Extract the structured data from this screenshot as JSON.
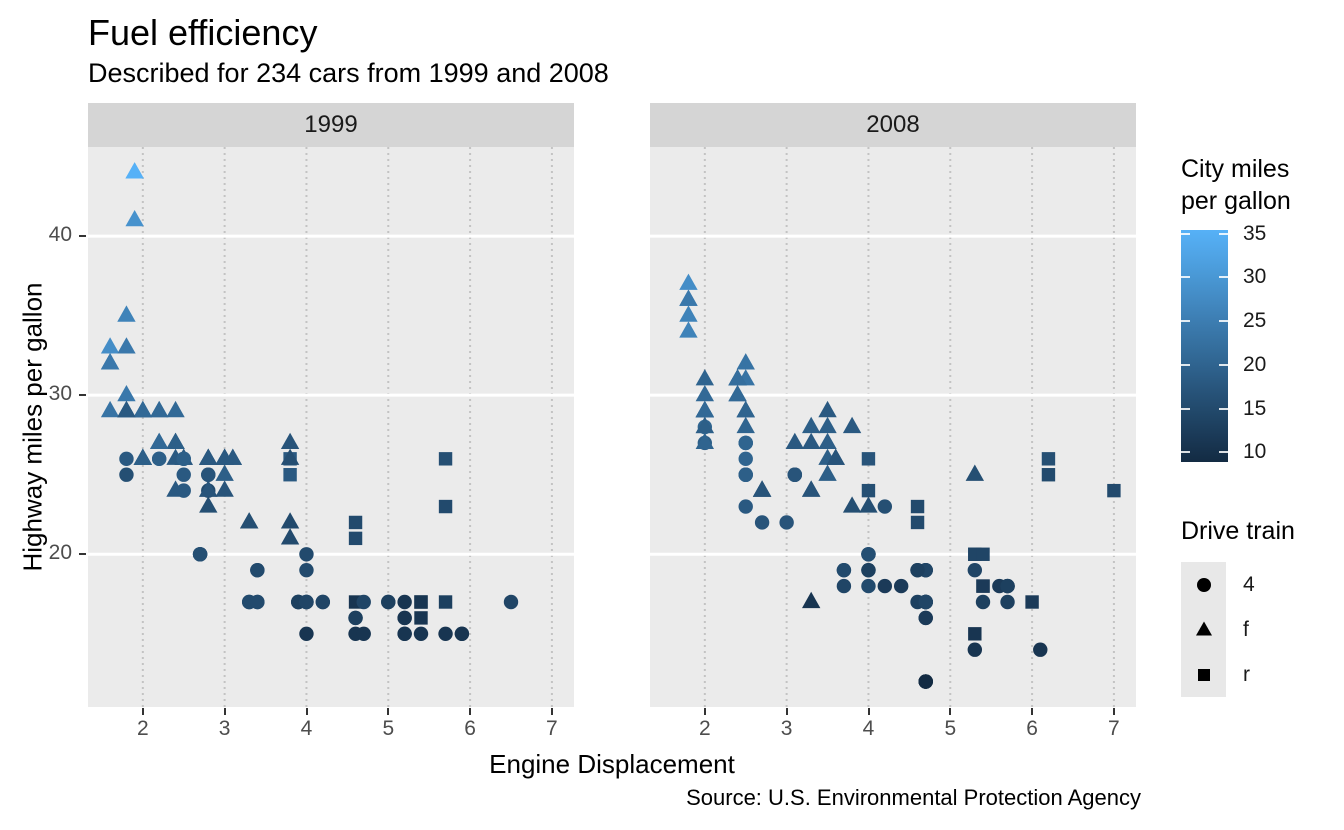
{
  "header": {
    "title": "Fuel efficiency",
    "subtitle": "Described for 234 cars from 1999 and 2008"
  },
  "caption": "Source: U.S. Environmental Protection Agency",
  "chart_data": {
    "type": "scatter",
    "title": "Fuel efficiency",
    "subtitle": "Described for 234 cars from 1999 and 2008",
    "caption": "Source: U.S. Environmental Protection Agency",
    "facets": [
      "1999",
      "2008"
    ],
    "xlabel": "Engine Displacement",
    "ylabel": "Highway miles per gallon",
    "x_ticks": [
      2,
      3,
      4,
      5,
      6,
      7
    ],
    "y_ticks": [
      20,
      30,
      40
    ],
    "x_domain": [
      1.33,
      7.27
    ],
    "y_domain": [
      10.4,
      45.6
    ],
    "grid": {
      "major_y": "solid white",
      "major_x": "dotted grey",
      "panel_bg": "#ebebeb"
    },
    "color_legend": {
      "title": "City miles\nper gallon",
      "low_hex": "#132B43",
      "high_hex": "#56B1F7",
      "domain": [
        9,
        35
      ],
      "bar_range": [
        8.9,
        35.4
      ],
      "ticks": [
        10,
        15,
        20,
        25,
        30,
        35
      ]
    },
    "shape_legend": {
      "title": "Drive train",
      "items": [
        {
          "label": "4",
          "shape": "circle"
        },
        {
          "label": "f",
          "shape": "triangle"
        },
        {
          "label": "r",
          "shape": "square"
        }
      ]
    },
    "point_format": [
      "displ",
      "hwy",
      "cty",
      "drv"
    ],
    "points": {
      "1999": [
        [
          1.8,
          29,
          18,
          "f"
        ],
        [
          1.8,
          29,
          21,
          "f"
        ],
        [
          2.8,
          26,
          16,
          "f"
        ],
        [
          2.8,
          26,
          18,
          "f"
        ],
        [
          1.8,
          26,
          18,
          "4"
        ],
        [
          1.8,
          25,
          16,
          "4"
        ],
        [
          2.8,
          25,
          15,
          "4"
        ],
        [
          2.8,
          25,
          17,
          "4"
        ],
        [
          2.8,
          24,
          15,
          "4"
        ],
        [
          5.7,
          17,
          13,
          "r"
        ],
        [
          5.7,
          26,
          16,
          "r"
        ],
        [
          5.7,
          23,
          15,
          "r"
        ],
        [
          5.7,
          15,
          11,
          "4"
        ],
        [
          6.5,
          17,
          14,
          "4"
        ],
        [
          2.4,
          27,
          19,
          "f"
        ],
        [
          3.1,
          26,
          18,
          "f"
        ],
        [
          2.4,
          24,
          18,
          "f"
        ],
        [
          3.0,
          24,
          17,
          "f"
        ],
        [
          3.3,
          22,
          16,
          "f"
        ],
        [
          3.3,
          22,
          16,
          "f"
        ],
        [
          3.8,
          22,
          15,
          "f"
        ],
        [
          3.8,
          21,
          15,
          "f"
        ],
        [
          3.9,
          17,
          13,
          "4"
        ],
        [
          3.9,
          17,
          14,
          "4"
        ],
        [
          5.2,
          17,
          11,
          "4"
        ],
        [
          5.2,
          15,
          11,
          "4"
        ],
        [
          3.9,
          17,
          13,
          "4"
        ],
        [
          5.2,
          16,
          11,
          "4"
        ],
        [
          5.9,
          15,
          11,
          "4"
        ],
        [
          5.2,
          15,
          11,
          "4"
        ],
        [
          5.2,
          16,
          11,
          "4"
        ],
        [
          5.9,
          15,
          11,
          "4"
        ],
        [
          4.6,
          17,
          11,
          "r"
        ],
        [
          5.4,
          17,
          11,
          "r"
        ],
        [
          4.0,
          17,
          14,
          "4"
        ],
        [
          4.0,
          19,
          15,
          "4"
        ],
        [
          4.0,
          17,
          14,
          "4"
        ],
        [
          5.0,
          17,
          13,
          "4"
        ],
        [
          4.2,
          17,
          14,
          "4"
        ],
        [
          4.2,
          17,
          14,
          "4"
        ],
        [
          4.6,
          16,
          13,
          "4"
        ],
        [
          4.6,
          16,
          13,
          "4"
        ],
        [
          5.4,
          15,
          11,
          "4"
        ],
        [
          3.8,
          26,
          18,
          "r"
        ],
        [
          3.8,
          25,
          18,
          "r"
        ],
        [
          4.6,
          21,
          15,
          "r"
        ],
        [
          4.6,
          22,
          15,
          "r"
        ],
        [
          1.6,
          33,
          28,
          "f"
        ],
        [
          1.6,
          32,
          24,
          "f"
        ],
        [
          1.6,
          32,
          25,
          "f"
        ],
        [
          1.6,
          29,
          23,
          "f"
        ],
        [
          1.6,
          32,
          24,
          "f"
        ],
        [
          2.4,
          26,
          18,
          "f"
        ],
        [
          2.4,
          27,
          18,
          "f"
        ],
        [
          2.5,
          26,
          18,
          "f"
        ],
        [
          2.5,
          26,
          18,
          "f"
        ],
        [
          2.0,
          26,
          19,
          "f"
        ],
        [
          2.0,
          29,
          19,
          "f"
        ],
        [
          4.0,
          20,
          15,
          "4"
        ],
        [
          4.7,
          17,
          14,
          "4"
        ],
        [
          4.0,
          15,
          11,
          "4"
        ],
        [
          4.6,
          15,
          11,
          "4"
        ],
        [
          5.4,
          17,
          11,
          "r"
        ],
        [
          5.4,
          16,
          11,
          "r"
        ],
        [
          4.0,
          17,
          14,
          "4"
        ],
        [
          5.0,
          17,
          13,
          "4"
        ],
        [
          2.4,
          29,
          21,
          "f"
        ],
        [
          2.4,
          27,
          19,
          "f"
        ],
        [
          3.0,
          26,
          18,
          "f"
        ],
        [
          3.0,
          25,
          19,
          "f"
        ],
        [
          3.3,
          17,
          14,
          "4"
        ],
        [
          3.3,
          17,
          15,
          "4"
        ],
        [
          3.1,
          26,
          18,
          "f"
        ],
        [
          3.8,
          26,
          16,
          "f"
        ],
        [
          3.8,
          27,
          17,
          "f"
        ],
        [
          2.5,
          25,
          18,
          "4"
        ],
        [
          2.5,
          24,
          18,
          "4"
        ],
        [
          2.2,
          26,
          21,
          "4"
        ],
        [
          2.2,
          26,
          19,
          "4"
        ],
        [
          2.5,
          26,
          19,
          "4"
        ],
        [
          2.5,
          26,
          19,
          "4"
        ],
        [
          2.7,
          20,
          15,
          "4"
        ],
        [
          2.7,
          20,
          16,
          "4"
        ],
        [
          3.4,
          19,
          15,
          "4"
        ],
        [
          3.4,
          17,
          15,
          "4"
        ],
        [
          2.2,
          29,
          21,
          "f"
        ],
        [
          2.2,
          27,
          21,
          "f"
        ],
        [
          3.0,
          26,
          18,
          "f"
        ],
        [
          3.0,
          26,
          18,
          "f"
        ],
        [
          2.2,
          27,
          21,
          "f"
        ],
        [
          2.2,
          29,
          21,
          "f"
        ],
        [
          3.0,
          26,
          18,
          "f"
        ],
        [
          3.0,
          26,
          18,
          "f"
        ],
        [
          1.8,
          30,
          24,
          "f"
        ],
        [
          1.8,
          33,
          24,
          "f"
        ],
        [
          1.8,
          35,
          26,
          "f"
        ],
        [
          4.7,
          15,
          11,
          "4"
        ],
        [
          2.7,
          20,
          15,
          "4"
        ],
        [
          2.7,
          20,
          16,
          "4"
        ],
        [
          3.4,
          17,
          15,
          "4"
        ],
        [
          3.4,
          19,
          15,
          "4"
        ],
        [
          2.0,
          29,
          21,
          "f"
        ],
        [
          2.0,
          26,
          19,
          "f"
        ],
        [
          2.8,
          24,
          17,
          "f"
        ],
        [
          1.9,
          44,
          33,
          "f"
        ],
        [
          2.0,
          29,
          21,
          "f"
        ],
        [
          2.0,
          26,
          19,
          "f"
        ],
        [
          2.8,
          23,
          16,
          "f"
        ],
        [
          2.8,
          24,
          17,
          "f"
        ],
        [
          1.9,
          44,
          35,
          "f"
        ],
        [
          1.9,
          41,
          29,
          "f"
        ],
        [
          2.0,
          29,
          21,
          "f"
        ],
        [
          2.0,
          26,
          19,
          "f"
        ],
        [
          1.8,
          29,
          21,
          "f"
        ],
        [
          1.8,
          29,
          18,
          "f"
        ],
        [
          2.8,
          26,
          16,
          "f"
        ],
        [
          2.8,
          26,
          18,
          "f"
        ]
      ],
      "2008": [
        [
          2.0,
          31,
          20,
          "f"
        ],
        [
          2.0,
          30,
          21,
          "f"
        ],
        [
          3.1,
          27,
          18,
          "f"
        ],
        [
          2.0,
          28,
          20,
          "4"
        ],
        [
          2.0,
          27,
          19,
          "4"
        ],
        [
          3.1,
          25,
          17,
          "4"
        ],
        [
          3.1,
          25,
          15,
          "4"
        ],
        [
          3.1,
          25,
          17,
          "4"
        ],
        [
          4.2,
          23,
          16,
          "4"
        ],
        [
          5.3,
          20,
          14,
          "r"
        ],
        [
          5.3,
          15,
          11,
          "r"
        ],
        [
          5.3,
          20,
          14,
          "r"
        ],
        [
          6.0,
          17,
          12,
          "r"
        ],
        [
          6.2,
          26,
          16,
          "r"
        ],
        [
          6.2,
          25,
          15,
          "r"
        ],
        [
          7.0,
          24,
          15,
          "r"
        ],
        [
          5.3,
          19,
          14,
          "4"
        ],
        [
          5.3,
          14,
          11,
          "4"
        ],
        [
          2.4,
          30,
          22,
          "f"
        ],
        [
          3.5,
          29,
          18,
          "f"
        ],
        [
          3.6,
          26,
          17,
          "f"
        ],
        [
          3.3,
          24,
          17,
          "f"
        ],
        [
          3.3,
          24,
          17,
          "f"
        ],
        [
          3.3,
          17,
          11,
          "f"
        ],
        [
          3.8,
          23,
          16,
          "f"
        ],
        [
          4.0,
          23,
          16,
          "f"
        ],
        [
          3.7,
          19,
          15,
          "4"
        ],
        [
          3.7,
          18,
          14,
          "4"
        ],
        [
          4.7,
          19,
          14,
          "4"
        ],
        [
          4.7,
          19,
          14,
          "4"
        ],
        [
          4.7,
          12,
          9,
          "4"
        ],
        [
          4.7,
          17,
          13,
          "4"
        ],
        [
          4.7,
          12,
          9,
          "4"
        ],
        [
          4.7,
          17,
          13,
          "4"
        ],
        [
          5.7,
          18,
          13,
          "4"
        ],
        [
          4.7,
          16,
          12,
          "4"
        ],
        [
          4.7,
          12,
          9,
          "4"
        ],
        [
          4.7,
          17,
          13,
          "4"
        ],
        [
          4.7,
          17,
          13,
          "4"
        ],
        [
          4.7,
          16,
          12,
          "4"
        ],
        [
          4.7,
          12,
          9,
          "4"
        ],
        [
          5.7,
          17,
          13,
          "4"
        ],
        [
          5.4,
          18,
          12,
          "r"
        ],
        [
          4.0,
          19,
          13,
          "4"
        ],
        [
          4.6,
          19,
          13,
          "4"
        ],
        [
          4.6,
          17,
          13,
          "4"
        ],
        [
          5.4,
          17,
          13,
          "4"
        ],
        [
          4.0,
          26,
          17,
          "r"
        ],
        [
          4.0,
          24,
          16,
          "r"
        ],
        [
          4.6,
          23,
          15,
          "r"
        ],
        [
          4.6,
          22,
          15,
          "r"
        ],
        [
          5.4,
          20,
          14,
          "r"
        ],
        [
          1.8,
          34,
          26,
          "f"
        ],
        [
          1.8,
          36,
          25,
          "f"
        ],
        [
          1.8,
          36,
          24,
          "f"
        ],
        [
          2.0,
          29,
          21,
          "f"
        ],
        [
          2.4,
          30,
          21,
          "f"
        ],
        [
          2.4,
          31,
          21,
          "f"
        ],
        [
          3.3,
          28,
          19,
          "f"
        ],
        [
          2.0,
          28,
          20,
          "f"
        ],
        [
          2.0,
          27,
          20,
          "f"
        ],
        [
          2.7,
          24,
          17,
          "f"
        ],
        [
          2.7,
          24,
          16,
          "f"
        ],
        [
          2.7,
          24,
          17,
          "f"
        ],
        [
          3.0,
          22,
          17,
          "4"
        ],
        [
          3.7,
          19,
          15,
          "4"
        ],
        [
          4.7,
          12,
          9,
          "4"
        ],
        [
          4.7,
          19,
          14,
          "4"
        ],
        [
          5.7,
          18,
          13,
          "4"
        ],
        [
          6.1,
          14,
          11,
          "4"
        ],
        [
          4.2,
          18,
          12,
          "4"
        ],
        [
          4.4,
          18,
          12,
          "4"
        ],
        [
          5.4,
          18,
          12,
          "r"
        ],
        [
          4.0,
          19,
          13,
          "4"
        ],
        [
          4.6,
          19,
          13,
          "4"
        ],
        [
          2.5,
          31,
          23,
          "f"
        ],
        [
          2.5,
          32,
          23,
          "f"
        ],
        [
          3.5,
          27,
          19,
          "f"
        ],
        [
          3.5,
          26,
          19,
          "f"
        ],
        [
          3.5,
          25,
          19,
          "f"
        ],
        [
          4.0,
          20,
          14,
          "4"
        ],
        [
          5.6,
          18,
          12,
          "4"
        ],
        [
          3.8,
          28,
          18,
          "f"
        ],
        [
          5.3,
          25,
          16,
          "f"
        ],
        [
          2.5,
          27,
          20,
          "4"
        ],
        [
          2.5,
          25,
          19,
          "4"
        ],
        [
          2.5,
          26,
          20,
          "4"
        ],
        [
          2.5,
          23,
          18,
          "4"
        ],
        [
          2.5,
          25,
          20,
          "4"
        ],
        [
          2.5,
          27,
          20,
          "4"
        ],
        [
          2.5,
          25,
          19,
          "4"
        ],
        [
          2.5,
          27,
          20,
          "4"
        ],
        [
          4.0,
          20,
          16,
          "4"
        ],
        [
          4.7,
          17,
          14,
          "4"
        ],
        [
          2.4,
          31,
          21,
          "f"
        ],
        [
          2.4,
          31,
          21,
          "f"
        ],
        [
          3.5,
          28,
          19,
          "f"
        ],
        [
          2.4,
          31,
          21,
          "f"
        ],
        [
          2.4,
          31,
          22,
          "f"
        ],
        [
          3.3,
          27,
          18,
          "f"
        ],
        [
          1.8,
          37,
          28,
          "f"
        ],
        [
          1.8,
          35,
          26,
          "f"
        ],
        [
          5.7,
          18,
          13,
          "4"
        ],
        [
          2.7,
          22,
          17,
          "4"
        ],
        [
          4.0,
          18,
          15,
          "4"
        ],
        [
          4.0,
          20,
          16,
          "4"
        ],
        [
          2.0,
          29,
          21,
          "f"
        ],
        [
          2.0,
          29,
          22,
          "f"
        ],
        [
          2.0,
          29,
          22,
          "f"
        ],
        [
          2.0,
          29,
          21,
          "f"
        ],
        [
          2.5,
          29,
          21,
          "f"
        ],
        [
          2.5,
          29,
          21,
          "f"
        ],
        [
          2.5,
          28,
          20,
          "f"
        ],
        [
          2.5,
          29,
          20,
          "f"
        ],
        [
          2.0,
          28,
          19,
          "f"
        ],
        [
          2.0,
          29,
          21,
          "f"
        ],
        [
          3.6,
          26,
          17,
          "f"
        ]
      ]
    }
  }
}
